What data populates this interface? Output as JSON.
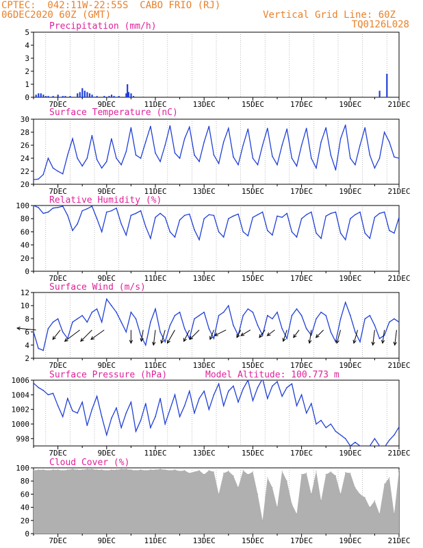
{
  "header": {
    "line1": "CPTEC:  042:11W-22:55S  CABO FRIO (RJ)",
    "line2": "06DEC2020 60Z (GMT)",
    "right1": "Vertical Grid Line: 60Z",
    "right2": "TQ0126L028"
  },
  "colors": {
    "header": "#e8802a",
    "title": "#e0209a",
    "line": "#1f3fd6",
    "cloud": "#b0b0b0",
    "wind": "#000000"
  },
  "x_tick_labels": [
    "7DEC",
    "9DEC",
    "11DEC",
    "13DEC",
    "15DEC",
    "17DEC",
    "19DEC",
    "21DEC"
  ],
  "panels": {
    "precip": {
      "title": "Precipitation (mm/h)",
      "yticks": [
        "0",
        "1",
        "2",
        "3",
        "4",
        "5"
      ]
    },
    "temp": {
      "title": "Surface Temperature (nC)",
      "yticks": [
        "20",
        "22",
        "24",
        "26",
        "28",
        "30"
      ]
    },
    "rh": {
      "title": "Relative Humidity (%)",
      "yticks": [
        "0",
        "20",
        "40",
        "60",
        "80",
        "100"
      ]
    },
    "wind": {
      "title": "Surface Wind (m/s)",
      "yticks": [
        "2",
        "4",
        "6",
        "8",
        "10",
        "12"
      ]
    },
    "pressure": {
      "title": "Surface Pressure (hPa)",
      "subtitle": "Model Altitude: 100.773 m",
      "yticks": [
        "998",
        "1000",
        "1002",
        "1004",
        "1006"
      ]
    },
    "cloud": {
      "title": "Cloud Cover (%)",
      "yticks": [
        "0",
        "20",
        "40",
        "60",
        "80",
        "100"
      ]
    }
  },
  "chart_data": [
    {
      "type": "bar",
      "title": "Precipitation (mm/h)",
      "ylim": [
        0,
        5
      ],
      "x_unit": "day of Dec 2020",
      "x": [
        6.1,
        6.2,
        6.3,
        6.4,
        6.5,
        6.6,
        6.8,
        7.0,
        7.2,
        7.3,
        7.5,
        7.8,
        7.9,
        8.0,
        8.1,
        8.2,
        8.3,
        8.4,
        8.6,
        8.9,
        9.1,
        9.2,
        9.3,
        9.5,
        9.8,
        9.85,
        9.9,
        10.0,
        10.1,
        20.2,
        20.5
      ],
      "values": [
        0.2,
        0.3,
        0.3,
        0.2,
        0.1,
        0.1,
        0.1,
        0.2,
        0.1,
        0.1,
        0.1,
        0.3,
        0.4,
        0.7,
        0.5,
        0.4,
        0.3,
        0.2,
        0.1,
        0.1,
        0.1,
        0.2,
        0.1,
        0.1,
        0.3,
        1.0,
        0.4,
        0.3,
        0.1,
        0.5,
        1.8
      ]
    },
    {
      "type": "line",
      "title": "Surface Temperature (nC)",
      "ylim": [
        20,
        30
      ],
      "x_unit": "day of Dec 2020",
      "x": [
        6.0,
        6.2,
        6.4,
        6.6,
        6.8,
        7.0,
        7.2,
        7.4,
        7.6,
        7.8,
        8.0,
        8.2,
        8.4,
        8.6,
        8.8,
        9.0,
        9.2,
        9.4,
        9.6,
        9.8,
        10.0,
        10.2,
        10.4,
        10.6,
        10.8,
        11.0,
        11.2,
        11.4,
        11.6,
        11.8,
        12.0,
        12.2,
        12.4,
        12.6,
        12.8,
        13.0,
        13.2,
        13.4,
        13.6,
        13.8,
        14.0,
        14.2,
        14.4,
        14.6,
        14.8,
        15.0,
        15.2,
        15.4,
        15.6,
        15.8,
        16.0,
        16.2,
        16.4,
        16.6,
        16.8,
        17.0,
        17.2,
        17.4,
        17.6,
        17.8,
        18.0,
        18.2,
        18.4,
        18.6,
        18.8,
        19.0,
        19.2,
        19.4,
        19.6,
        19.8,
        20.0,
        20.2,
        20.4,
        20.6,
        20.8,
        21.0
      ],
      "values": [
        20.7,
        20.8,
        21.5,
        24.0,
        22.5,
        22.0,
        21.6,
        24.5,
        27.0,
        24.0,
        22.8,
        24.0,
        27.5,
        23.8,
        22.5,
        23.5,
        27.0,
        24.0,
        23.0,
        25.0,
        28.7,
        24.5,
        24.0,
        26.5,
        28.9,
        24.8,
        23.5,
        26.0,
        29.0,
        24.8,
        24.0,
        27.0,
        28.8,
        24.5,
        23.5,
        26.5,
        28.9,
        24.5,
        23.2,
        26.5,
        28.6,
        24.2,
        23.0,
        26.0,
        28.5,
        24.0,
        23.0,
        26.0,
        28.6,
        24.3,
        23.0,
        26.0,
        28.5,
        24.0,
        22.8,
        26.0,
        28.6,
        24.0,
        22.5,
        26.5,
        28.7,
        24.5,
        22.2,
        27.0,
        29.1,
        24.0,
        23.0,
        26.0,
        28.7,
        24.5,
        22.5,
        24.0,
        28.0,
        26.5,
        24.2,
        24.0
      ]
    },
    {
      "type": "line",
      "title": "Relative Humidity (%)",
      "ylim": [
        0,
        100
      ],
      "x_unit": "day of Dec 2020",
      "x": [
        6.0,
        6.2,
        6.4,
        6.6,
        6.8,
        7.0,
        7.2,
        7.4,
        7.6,
        7.8,
        8.0,
        8.2,
        8.4,
        8.6,
        8.8,
        9.0,
        9.2,
        9.4,
        9.6,
        9.8,
        10.0,
        10.2,
        10.4,
        10.6,
        10.8,
        11.0,
        11.2,
        11.4,
        11.6,
        11.8,
        12.0,
        12.2,
        12.4,
        12.6,
        12.8,
        13.0,
        13.2,
        13.4,
        13.6,
        13.8,
        14.0,
        14.2,
        14.4,
        14.6,
        14.8,
        15.0,
        15.2,
        15.4,
        15.6,
        15.8,
        16.0,
        16.2,
        16.4,
        16.6,
        16.8,
        17.0,
        17.2,
        17.4,
        17.6,
        17.8,
        18.0,
        18.2,
        18.4,
        18.6,
        18.8,
        19.0,
        19.2,
        19.4,
        19.6,
        19.8,
        20.0,
        20.2,
        20.4,
        20.6,
        20.8,
        21.0
      ],
      "values": [
        100,
        97,
        88,
        90,
        96,
        97,
        99,
        85,
        62,
        72,
        92,
        95,
        99,
        80,
        60,
        90,
        92,
        96,
        72,
        55,
        85,
        88,
        92,
        68,
        50,
        82,
        88,
        82,
        60,
        52,
        78,
        85,
        87,
        63,
        48,
        80,
        86,
        85,
        60,
        52,
        80,
        84,
        87,
        60,
        54,
        82,
        86,
        90,
        62,
        55,
        84,
        82,
        88,
        60,
        52,
        80,
        86,
        90,
        58,
        50,
        84,
        88,
        90,
        58,
        48,
        80,
        86,
        90,
        58,
        50,
        82,
        88,
        90,
        62,
        58,
        82
      ]
    },
    {
      "type": "line",
      "title": "Surface Wind (m/s)",
      "ylim": [
        2,
        12
      ],
      "x_unit": "day of Dec 2020",
      "x": [
        6.0,
        6.2,
        6.4,
        6.6,
        6.8,
        7.0,
        7.2,
        7.4,
        7.6,
        7.8,
        8.0,
        8.2,
        8.4,
        8.6,
        8.8,
        9.0,
        9.2,
        9.4,
        9.6,
        9.8,
        10.0,
        10.2,
        10.4,
        10.6,
        10.8,
        11.0,
        11.2,
        11.4,
        11.6,
        11.8,
        12.0,
        12.2,
        12.4,
        12.6,
        12.8,
        13.0,
        13.2,
        13.4,
        13.6,
        13.8,
        14.0,
        14.2,
        14.4,
        14.6,
        14.8,
        15.0,
        15.2,
        15.4,
        15.6,
        15.8,
        16.0,
        16.2,
        16.4,
        16.6,
        16.8,
        17.0,
        17.2,
        17.4,
        17.6,
        17.8,
        18.0,
        18.2,
        18.4,
        18.6,
        18.8,
        19.0,
        19.2,
        19.4,
        19.6,
        19.8,
        20.0,
        20.2,
        20.4,
        20.6,
        20.8,
        21.0
      ],
      "values": [
        6.0,
        3.5,
        3.2,
        6.5,
        7.5,
        8.0,
        6.0,
        5.0,
        7.5,
        8.0,
        8.5,
        7.5,
        9.0,
        9.5,
        7.5,
        11.0,
        10.0,
        9.0,
        7.5,
        6.0,
        9.0,
        8.0,
        5.5,
        4.0,
        7.5,
        9.5,
        6.0,
        4.5,
        7.0,
        8.5,
        9.0,
        6.5,
        5.0,
        8.0,
        8.5,
        9.0,
        6.5,
        5.0,
        8.5,
        9.0,
        10.0,
        7.0,
        5.5,
        8.5,
        9.5,
        9.0,
        7.0,
        5.5,
        8.5,
        8.0,
        9.0,
        6.5,
        5.0,
        8.5,
        9.5,
        8.5,
        6.5,
        5.5,
        8.0,
        9.0,
        8.5,
        6.0,
        4.5,
        8.0,
        10.5,
        8.5,
        6.0,
        4.5,
        8.0,
        8.5,
        7.0,
        5.0,
        5.5,
        7.5,
        8.0,
        7.5
      ],
      "vectors": {
        "x": [
          6.1,
          7.1,
          7.9,
          8.4,
          8.9,
          10.0,
          10.5,
          11.0,
          11.4,
          11.8,
          12.4,
          12.8,
          13.4,
          13.9,
          14.5,
          14.9,
          15.5,
          15.9,
          16.4,
          16.9,
          17.4,
          17.9,
          18.6,
          19.3,
          20.0,
          20.4,
          20.9
        ],
        "u": [
          -5.0,
          -2.0,
          -4.0,
          -3.0,
          -3.5,
          0.0,
          -0.5,
          -0.5,
          -1.0,
          -2.0,
          -1.5,
          -2.5,
          -1.0,
          -3.0,
          -1.0,
          -2.5,
          -1.5,
          -2.0,
          -1.0,
          -1.5,
          -0.5,
          -2.0,
          -1.0,
          -1.0,
          -0.5,
          -0.5,
          -0.5
        ],
        "v": [
          0.5,
          -2.5,
          -3.0,
          -3.0,
          -2.5,
          -3.5,
          -3.0,
          -4.0,
          -3.5,
          -3.5,
          -3.0,
          -2.5,
          -2.5,
          -1.5,
          -2.0,
          -1.5,
          -2.0,
          -1.5,
          -3.0,
          -2.0,
          -3.5,
          -2.0,
          -3.5,
          -3.5,
          -4.0,
          -3.5,
          -4.0
        ]
      }
    },
    {
      "type": "line",
      "title": "Surface Pressure (hPa)",
      "ylim": [
        997,
        1006
      ],
      "x_unit": "day of Dec 2020",
      "x": [
        6.0,
        6.2,
        6.4,
        6.6,
        6.8,
        7.0,
        7.2,
        7.4,
        7.6,
        7.8,
        8.0,
        8.2,
        8.4,
        8.6,
        8.8,
        9.0,
        9.2,
        9.4,
        9.6,
        9.8,
        10.0,
        10.2,
        10.4,
        10.6,
        10.8,
        11.0,
        11.2,
        11.4,
        11.6,
        11.8,
        12.0,
        12.2,
        12.4,
        12.6,
        12.8,
        13.0,
        13.2,
        13.4,
        13.6,
        13.8,
        14.0,
        14.2,
        14.4,
        14.6,
        14.8,
        15.0,
        15.2,
        15.4,
        15.6,
        15.8,
        16.0,
        16.2,
        16.4,
        16.6,
        16.8,
        17.0,
        17.2,
        17.4,
        17.6,
        17.8,
        18.0,
        18.2,
        18.4,
        18.6,
        18.8,
        19.0,
        19.2,
        19.4,
        19.6,
        19.8,
        20.0,
        20.2,
        20.4,
        20.6,
        20.8,
        21.0
      ],
      "values": [
        1005.6,
        1005.0,
        1004.6,
        1004.0,
        1004.2,
        1002.5,
        1001.0,
        1003.5,
        1001.8,
        1001.5,
        1003.0,
        999.8,
        1002.0,
        1003.8,
        1001.0,
        998.5,
        1000.8,
        1002.2,
        999.5,
        1001.5,
        1003.0,
        999.0,
        1000.5,
        1002.8,
        999.5,
        1001.0,
        1003.5,
        1000.0,
        1002.0,
        1004.0,
        1001.0,
        1002.5,
        1004.5,
        1001.5,
        1003.5,
        1004.5,
        1002.0,
        1004.0,
        1005.5,
        1002.5,
        1004.5,
        1005.2,
        1003.0,
        1004.8,
        1006.0,
        1003.2,
        1005.0,
        1006.2,
        1003.5,
        1005.2,
        1005.8,
        1003.8,
        1005.0,
        1005.5,
        1002.5,
        1004.0,
        1001.5,
        1002.8,
        1000.0,
        1000.5,
        999.5,
        1000.0,
        999.0,
        998.5,
        998.0,
        997.0,
        997.5,
        997.0,
        996.5,
        997.0,
        998.0,
        997.0,
        996.8,
        997.8,
        998.5,
        999.6
      ]
    },
    {
      "type": "area",
      "title": "Cloud Cover (%)",
      "ylim": [
        0,
        100
      ],
      "x_unit": "day of Dec 2020",
      "x": [
        6.0,
        6.2,
        6.4,
        6.6,
        6.8,
        7.0,
        7.2,
        7.4,
        7.6,
        7.8,
        8.0,
        8.2,
        8.4,
        8.6,
        8.8,
        9.0,
        9.2,
        9.4,
        9.6,
        9.8,
        10.0,
        10.2,
        10.4,
        10.6,
        10.8,
        11.0,
        11.2,
        11.4,
        11.6,
        11.8,
        12.0,
        12.2,
        12.4,
        12.6,
        12.8,
        13.0,
        13.2,
        13.4,
        13.6,
        13.8,
        14.0,
        14.2,
        14.4,
        14.6,
        14.8,
        15.0,
        15.2,
        15.4,
        15.6,
        15.8,
        16.0,
        16.2,
        16.4,
        16.6,
        16.8,
        17.0,
        17.2,
        17.4,
        17.6,
        17.8,
        18.0,
        18.2,
        18.4,
        18.6,
        18.8,
        19.0,
        19.2,
        19.4,
        19.6,
        19.8,
        20.0,
        20.2,
        20.4,
        20.6,
        20.8,
        21.0
      ],
      "values": [
        96,
        97,
        97,
        96,
        97,
        97,
        96,
        97,
        98,
        97,
        97,
        98,
        98,
        97,
        97,
        96,
        97,
        97,
        98,
        98,
        97,
        96,
        97,
        96,
        97,
        97,
        98,
        97,
        96,
        97,
        95,
        96,
        92,
        94,
        96,
        90,
        96,
        94,
        60,
        92,
        95,
        88,
        70,
        96,
        90,
        94,
        60,
        20,
        85,
        70,
        40,
        95,
        80,
        45,
        30,
        90,
        92,
        60,
        95,
        50,
        90,
        94,
        88,
        60,
        93,
        92,
        70,
        60,
        55,
        40,
        50,
        30,
        75,
        85,
        30,
        96
      ]
    }
  ]
}
